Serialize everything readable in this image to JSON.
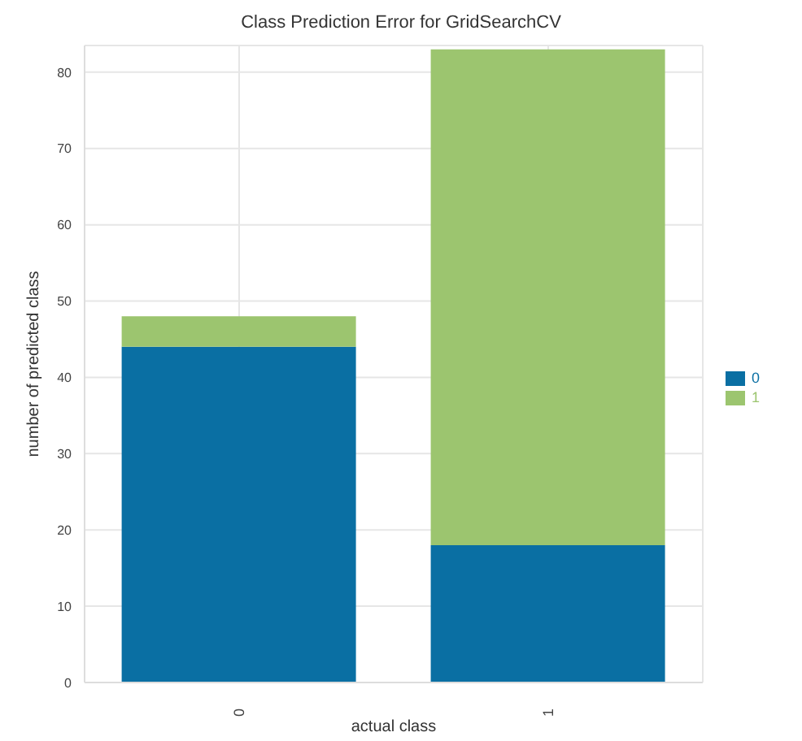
{
  "chart_data": {
    "type": "bar",
    "title": "Class Prediction Error for GridSearchCV",
    "xlabel": "actual class",
    "ylabel": "number of predicted class",
    "categories": [
      "0",
      "1"
    ],
    "stacked": true,
    "series": [
      {
        "name": "0",
        "color": "#0a6fa3",
        "values": [
          44,
          18
        ]
      },
      {
        "name": "1",
        "color": "#9cc56f",
        "values": [
          4,
          65
        ]
      }
    ],
    "ylim": [
      0,
      83.5
    ],
    "yticks": [
      0,
      10,
      20,
      30,
      40,
      50,
      60,
      70,
      80
    ],
    "grid": true,
    "legend": "right"
  }
}
